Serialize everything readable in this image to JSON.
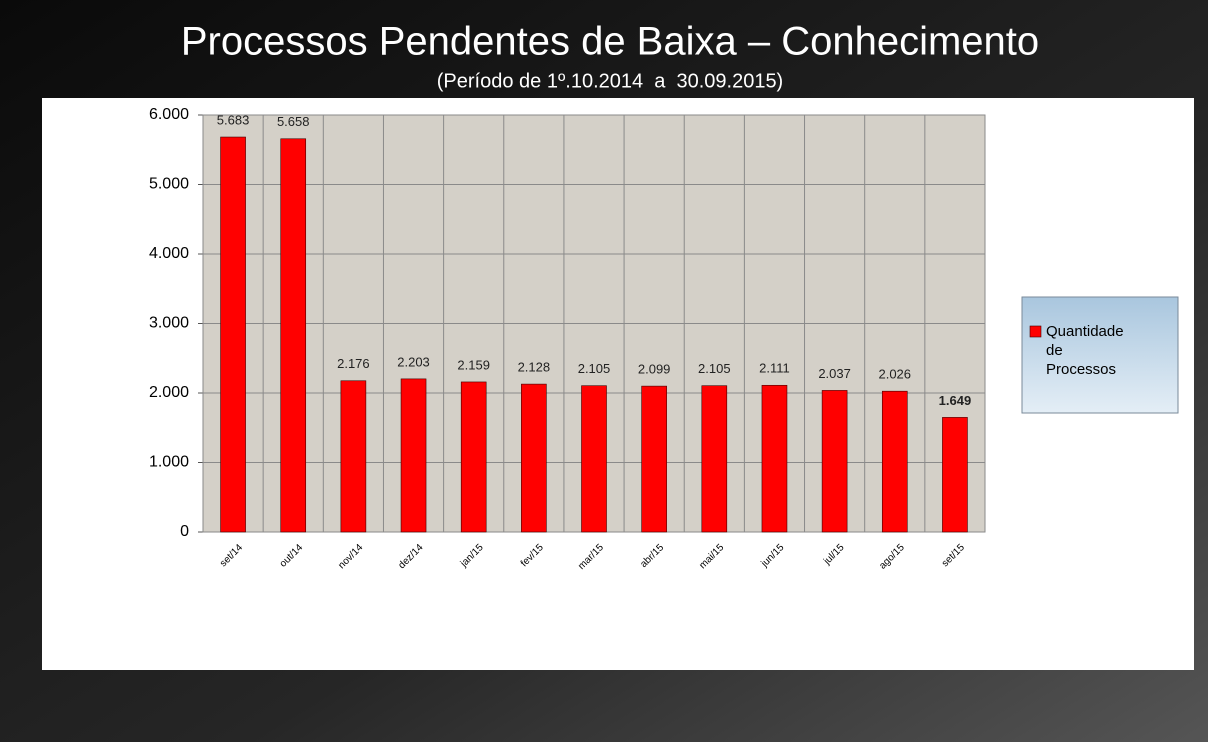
{
  "chart_data": {
    "type": "bar",
    "title": "Processos Pendentes de Baixa – Conhecimento",
    "subtitle": "(Período de 1º.10.2014  a  30.09.2015)",
    "categories": [
      "set/14",
      "out/14",
      "nov/14",
      "dez/14",
      "jan/15",
      "fev/15",
      "mar/15",
      "abr/15",
      "mai/15",
      "jun/15",
      "jul/15",
      "ago/15",
      "set/15"
    ],
    "series": [
      {
        "name": "Quantidade de Processos",
        "color": "#ff0000",
        "values": [
          5683,
          5658,
          2176,
          2203,
          2159,
          2128,
          2105,
          2099,
          2105,
          2111,
          2037,
          2026,
          1649
        ],
        "value_labels": [
          "5.683",
          "5.658",
          "2.176",
          "2.203",
          "2.159",
          "2.128",
          "2.105",
          "2.099",
          "2.105",
          "2.111",
          "2.037",
          "2.026",
          "1.649"
        ]
      }
    ],
    "ylim": [
      0,
      6000
    ],
    "yticks": [
      0,
      {
        "value": 1000,
        "label": "1.000"
      },
      {
        "value": 2000,
        "label": "2.000"
      },
      {
        "value": 3000,
        "label": "3.000"
      },
      {
        "value": 4000,
        "label": "4.000"
      },
      {
        "value": 5000,
        "label": "5.000"
      },
      {
        "value": 6000,
        "label": "6.000"
      }
    ],
    "grid": true,
    "legend": "right"
  }
}
